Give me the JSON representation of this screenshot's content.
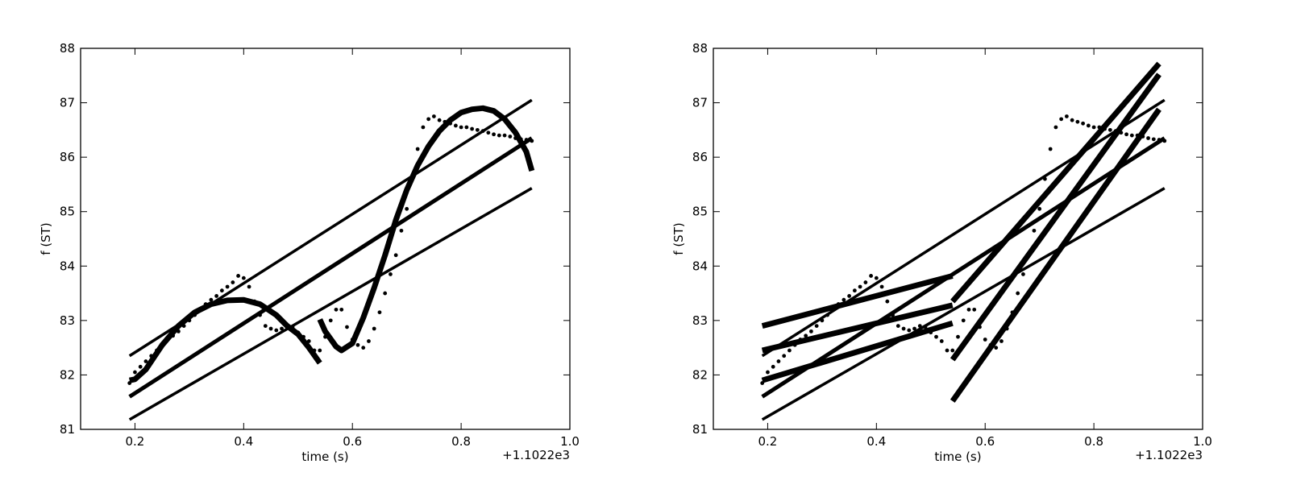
{
  "chart_data": [
    {
      "type": "scatter",
      "title": "",
      "xlabel": "time (s)",
      "ylabel": "f (ST)",
      "x_offset_label": "+1.1022e3",
      "xlim": [
        0.1,
        1.0
      ],
      "ylim": [
        81,
        88
      ],
      "xticks": [
        "0.2",
        "0.4",
        "0.6",
        "0.8",
        "1.0"
      ],
      "yticks": [
        "81",
        "82",
        "83",
        "84",
        "85",
        "86",
        "87",
        "88"
      ],
      "grid": false,
      "points": {
        "x": [
          0.19,
          0.2,
          0.21,
          0.22,
          0.23,
          0.24,
          0.25,
          0.26,
          0.27,
          0.28,
          0.29,
          0.3,
          0.31,
          0.32,
          0.33,
          0.34,
          0.35,
          0.36,
          0.37,
          0.38,
          0.39,
          0.4,
          0.41,
          0.42,
          0.43,
          0.44,
          0.45,
          0.46,
          0.47,
          0.48,
          0.49,
          0.5,
          0.51,
          0.52,
          0.53,
          0.54,
          0.55,
          0.56,
          0.57,
          0.58,
          0.59,
          0.6,
          0.61,
          0.62,
          0.63,
          0.64,
          0.65,
          0.66,
          0.67,
          0.68,
          0.69,
          0.7,
          0.71,
          0.72,
          0.73,
          0.74,
          0.75,
          0.76,
          0.77,
          0.78,
          0.79,
          0.8,
          0.81,
          0.82,
          0.83,
          0.84,
          0.85,
          0.86,
          0.87,
          0.88,
          0.89,
          0.9,
          0.91,
          0.92,
          0.93
        ],
        "y": [
          81.85,
          82.05,
          82.15,
          82.25,
          82.35,
          82.45,
          82.55,
          82.65,
          82.72,
          82.8,
          82.9,
          83.0,
          83.1,
          83.2,
          83.3,
          83.38,
          83.45,
          83.55,
          83.62,
          83.7,
          83.82,
          83.78,
          83.62,
          83.35,
          83.1,
          82.9,
          82.85,
          82.82,
          82.85,
          82.9,
          82.88,
          82.78,
          82.7,
          82.62,
          82.45,
          82.45,
          82.7,
          83.0,
          83.2,
          83.2,
          82.88,
          82.65,
          82.55,
          82.5,
          82.62,
          82.85,
          83.15,
          83.5,
          83.85,
          84.2,
          84.65,
          85.05,
          85.6,
          86.15,
          86.55,
          86.7,
          86.75,
          86.68,
          86.65,
          86.62,
          86.58,
          86.55,
          86.55,
          86.52,
          86.5,
          86.48,
          86.45,
          86.42,
          86.4,
          86.4,
          86.38,
          86.35,
          86.33,
          86.32,
          86.3
        ]
      },
      "lines": [
        {
          "x": [
            0.19,
            0.93
          ],
          "y": [
            82.35,
            87.05
          ],
          "weight": "thin"
        },
        {
          "x": [
            0.19,
            0.93
          ],
          "y": [
            81.6,
            86.35
          ],
          "weight": "medium"
        },
        {
          "x": [
            0.19,
            0.93
          ],
          "y": [
            81.18,
            85.43
          ],
          "weight": "thin"
        }
      ],
      "curves": [
        {
          "x": [
            0.19,
            0.2,
            0.22,
            0.25,
            0.28,
            0.31,
            0.34,
            0.37,
            0.4,
            0.43,
            0.46,
            0.48,
            0.5,
            0.52,
            0.54
          ],
          "y": [
            81.9,
            81.92,
            82.1,
            82.55,
            82.9,
            83.15,
            83.3,
            83.37,
            83.38,
            83.3,
            83.1,
            82.9,
            82.75,
            82.5,
            82.22
          ]
        },
        {
          "x": [
            0.54,
            0.55,
            0.57,
            0.58,
            0.6,
            0.62,
            0.64,
            0.66,
            0.68,
            0.7,
            0.72,
            0.74,
            0.76,
            0.78,
            0.8,
            0.82,
            0.84,
            0.86,
            0.88,
            0.9,
            0.92,
            0.93
          ],
          "y": [
            83.02,
            82.8,
            82.52,
            82.45,
            82.58,
            83.05,
            83.6,
            84.2,
            84.85,
            85.4,
            85.85,
            86.2,
            86.48,
            86.68,
            86.82,
            86.88,
            86.9,
            86.85,
            86.7,
            86.45,
            86.1,
            85.75
          ]
        }
      ]
    },
    {
      "type": "scatter",
      "title": "",
      "xlabel": "time (s)",
      "ylabel": "f (ST)",
      "x_offset_label": "+1.1022e3",
      "xlim": [
        0.1,
        1.0
      ],
      "ylim": [
        81,
        88
      ],
      "xticks": [
        "0.2",
        "0.4",
        "0.6",
        "0.8",
        "1.0"
      ],
      "yticks": [
        "81",
        "82",
        "83",
        "84",
        "85",
        "86",
        "87",
        "88"
      ],
      "grid": false,
      "points": {
        "x": [
          0.19,
          0.2,
          0.21,
          0.22,
          0.23,
          0.24,
          0.25,
          0.26,
          0.27,
          0.28,
          0.29,
          0.3,
          0.31,
          0.32,
          0.33,
          0.34,
          0.35,
          0.36,
          0.37,
          0.38,
          0.39,
          0.4,
          0.41,
          0.42,
          0.43,
          0.44,
          0.45,
          0.46,
          0.47,
          0.48,
          0.49,
          0.5,
          0.51,
          0.52,
          0.53,
          0.54,
          0.55,
          0.56,
          0.57,
          0.58,
          0.59,
          0.6,
          0.61,
          0.62,
          0.63,
          0.64,
          0.65,
          0.66,
          0.67,
          0.68,
          0.69,
          0.7,
          0.71,
          0.72,
          0.73,
          0.74,
          0.75,
          0.76,
          0.77,
          0.78,
          0.79,
          0.8,
          0.81,
          0.82,
          0.83,
          0.84,
          0.85,
          0.86,
          0.87,
          0.88,
          0.89,
          0.9,
          0.91,
          0.92,
          0.93
        ],
        "y": [
          81.85,
          82.05,
          82.15,
          82.25,
          82.35,
          82.45,
          82.55,
          82.65,
          82.72,
          82.8,
          82.9,
          83.0,
          83.1,
          83.2,
          83.3,
          83.38,
          83.45,
          83.55,
          83.62,
          83.7,
          83.82,
          83.78,
          83.62,
          83.35,
          83.1,
          82.9,
          82.85,
          82.82,
          82.85,
          82.9,
          82.88,
          82.78,
          82.7,
          82.62,
          82.45,
          82.45,
          82.7,
          83.0,
          83.2,
          83.2,
          82.88,
          82.65,
          82.55,
          82.5,
          82.62,
          82.85,
          83.15,
          83.5,
          83.85,
          84.2,
          84.65,
          85.05,
          85.6,
          86.15,
          86.55,
          86.7,
          86.75,
          86.68,
          86.65,
          86.62,
          86.58,
          86.55,
          86.55,
          86.52,
          86.5,
          86.48,
          86.45,
          86.42,
          86.4,
          86.4,
          86.38,
          86.35,
          86.33,
          86.32,
          86.3
        ]
      },
      "lines": [
        {
          "x": [
            0.19,
            0.93
          ],
          "y": [
            82.35,
            87.05
          ],
          "weight": "thin"
        },
        {
          "x": [
            0.19,
            0.93
          ],
          "y": [
            81.6,
            86.35
          ],
          "weight": "medium"
        },
        {
          "x": [
            0.19,
            0.93
          ],
          "y": [
            81.18,
            85.43
          ],
          "weight": "thin"
        },
        {
          "x": [
            0.19,
            0.54
          ],
          "y": [
            82.9,
            83.82
          ],
          "weight": "thick"
        },
        {
          "x": [
            0.19,
            0.54
          ],
          "y": [
            82.45,
            83.28
          ],
          "weight": "thick"
        },
        {
          "x": [
            0.19,
            0.54
          ],
          "y": [
            81.9,
            82.95
          ],
          "weight": "thick"
        },
        {
          "x": [
            0.54,
            0.92
          ],
          "y": [
            83.35,
            87.72
          ],
          "weight": "thick"
        },
        {
          "x": [
            0.54,
            0.92
          ],
          "y": [
            82.28,
            87.52
          ],
          "weight": "thick"
        },
        {
          "x": [
            0.54,
            0.92
          ],
          "y": [
            81.52,
            86.88
          ],
          "weight": "thick"
        }
      ],
      "curves": []
    }
  ]
}
